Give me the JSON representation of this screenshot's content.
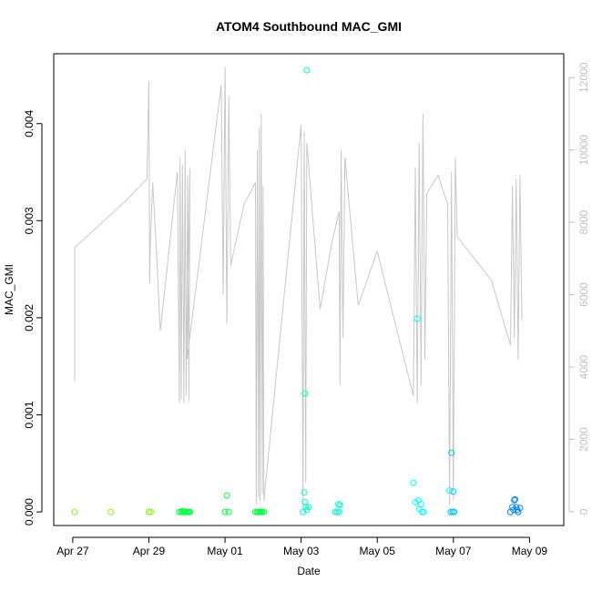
{
  "chart_data": {
    "type": "scatter",
    "title": "ATOM4 Southbound MAC_GMI",
    "xlabel": "Date",
    "ylabel": "MAC_GMI",
    "x_ticks": [
      "Apr 27",
      "Apr 29",
      "May 01",
      "May 03",
      "May 05",
      "May 07",
      "May 09"
    ],
    "y_ticks": [
      "0.000",
      "0.001",
      "0.002",
      "0.003",
      "0.004"
    ],
    "y_right_ticks": [
      "0",
      "2000",
      "4000",
      "6000",
      "8000",
      "10000",
      "12000"
    ],
    "xlim_days": [
      -0.5,
      12.9
    ],
    "ylim": [
      -0.00014,
      0.00472
    ],
    "y_right_lim": [
      -380,
      12660
    ],
    "colors": {
      "line": "#c8c8c8",
      "axis": "#000000",
      "right_axis": "#c0c0c0",
      "points": [
        "#80ff00",
        "#00ff40",
        "#00ffc0",
        "#00ffff",
        "#00c0ff",
        "#0080ff"
      ]
    },
    "points": [
      [
        0.05,
        0.0,
        0
      ],
      [
        1.0,
        0.0,
        0
      ],
      [
        2.0,
        0.0,
        0
      ],
      [
        2.05,
        0.0,
        0
      ],
      [
        2.8,
        0.0,
        1
      ],
      [
        2.85,
        0.0,
        1
      ],
      [
        2.88,
        1e-05,
        1
      ],
      [
        2.92,
        0.0,
        1
      ],
      [
        2.95,
        0.0,
        1
      ],
      [
        2.98,
        0.0,
        1
      ],
      [
        3.02,
        0.0,
        1
      ],
      [
        3.05,
        0.0,
        1
      ],
      [
        3.08,
        0.0,
        1
      ],
      [
        4.0,
        0.0,
        1
      ],
      [
        4.05,
        0.00017,
        1
      ],
      [
        4.1,
        0.0,
        1
      ],
      [
        4.8,
        0.0,
        1
      ],
      [
        4.85,
        0.0,
        1
      ],
      [
        4.88,
        0.0,
        1
      ],
      [
        4.92,
        0.0,
        1
      ],
      [
        4.95,
        0.0,
        1
      ],
      [
        4.98,
        0.0,
        1
      ],
      [
        5.02,
        0.0,
        1
      ],
      [
        6.05,
        0.0,
        2
      ],
      [
        6.1,
        0.0001,
        2
      ],
      [
        6.12,
        5e-05,
        2
      ],
      [
        6.15,
        2e-05,
        2
      ],
      [
        6.08,
        0.0002,
        2
      ],
      [
        6.1,
        0.00122,
        2
      ],
      [
        6.15,
        0.00455,
        2
      ],
      [
        6.2,
        5e-05,
        2
      ],
      [
        6.9,
        0.0,
        2
      ],
      [
        6.95,
        0.0,
        2
      ],
      [
        6.98,
        8e-05,
        2
      ],
      [
        7.0,
        0.0,
        2
      ],
      [
        7.02,
        7e-05,
        2
      ],
      [
        8.95,
        0.0003,
        3
      ],
      [
        9.0,
        0.0001,
        3
      ],
      [
        9.05,
        0.00199,
        3
      ],
      [
        9.08,
        0.00012,
        3
      ],
      [
        9.1,
        3e-05,
        3
      ],
      [
        9.15,
        8e-05,
        3
      ],
      [
        9.18,
        0.0,
        3
      ],
      [
        9.22,
        0.0,
        3
      ],
      [
        9.9,
        0.00022,
        3
      ],
      [
        9.95,
        0.00061,
        4
      ],
      [
        10.0,
        0.00021,
        4
      ],
      [
        9.93,
        0.0,
        4
      ],
      [
        9.98,
        0.0,
        4
      ],
      [
        10.02,
        0.0,
        4
      ],
      [
        11.5,
        0.0,
        5
      ],
      [
        11.55,
        5e-05,
        5
      ],
      [
        11.6,
        0.00012,
        5
      ],
      [
        11.62,
        0.00013,
        5
      ],
      [
        11.65,
        5e-05,
        5
      ],
      [
        11.68,
        2e-05,
        5
      ],
      [
        11.7,
        0.0,
        5
      ],
      [
        11.75,
        4e-05,
        5
      ],
      [
        11.58,
        2e-05,
        5
      ]
    ],
    "line_series": [
      [
        0.05,
        3600
      ],
      [
        0.05,
        7300
      ],
      [
        1.4,
        8600
      ],
      [
        1.95,
        9200
      ],
      [
        2.0,
        11900
      ],
      [
        2.02,
        6300
      ],
      [
        2.04,
        7500
      ],
      [
        2.1,
        9100
      ],
      [
        2.2,
        7200
      ],
      [
        2.3,
        5000
      ],
      [
        2.75,
        9400
      ],
      [
        2.8,
        3000
      ],
      [
        2.82,
        9800
      ],
      [
        2.85,
        3100
      ],
      [
        2.88,
        9600
      ],
      [
        2.92,
        3000
      ],
      [
        2.95,
        10000
      ],
      [
        2.98,
        3200
      ],
      [
        3.02,
        9300
      ],
      [
        3.05,
        3050
      ],
      [
        3.08,
        9500
      ],
      [
        3.0,
        4200
      ],
      [
        3.9,
        11800
      ],
      [
        3.95,
        6000
      ],
      [
        4.0,
        12300
      ],
      [
        4.05,
        5200
      ],
      [
        4.1,
        11500
      ],
      [
        4.15,
        6800
      ],
      [
        4.5,
        8500
      ],
      [
        4.8,
        9100
      ],
      [
        4.82,
        200
      ],
      [
        4.85,
        10000
      ],
      [
        4.88,
        400
      ],
      [
        4.9,
        10600
      ],
      [
        4.92,
        300
      ],
      [
        4.95,
        11000
      ],
      [
        4.98,
        500
      ],
      [
        5.0,
        9000
      ],
      [
        5.02,
        300
      ],
      [
        6.0,
        10700
      ],
      [
        6.05,
        200
      ],
      [
        6.08,
        10500
      ],
      [
        6.12,
        800
      ],
      [
        6.15,
        10200
      ],
      [
        6.5,
        5600
      ],
      [
        6.8,
        7400
      ],
      [
        7.0,
        8300
      ],
      [
        7.02,
        3500
      ],
      [
        7.05,
        10000
      ],
      [
        7.1,
        4800
      ],
      [
        7.15,
        9800
      ],
      [
        7.5,
        5700
      ],
      [
        8.0,
        7200
      ],
      [
        8.95,
        3200
      ],
      [
        9.0,
        9500
      ],
      [
        9.05,
        3000
      ],
      [
        9.1,
        10200
      ],
      [
        9.15,
        3500
      ],
      [
        9.2,
        11000
      ],
      [
        9.25,
        4200
      ],
      [
        9.3,
        8800
      ],
      [
        9.6,
        9300
      ],
      [
        9.85,
        8500
      ],
      [
        9.9,
        200
      ],
      [
        9.95,
        9400
      ],
      [
        10.0,
        300
      ],
      [
        10.05,
        9800
      ],
      [
        10.1,
        7600
      ],
      [
        11.0,
        6400
      ],
      [
        11.5,
        4600
      ],
      [
        11.55,
        9000
      ],
      [
        11.6,
        4800
      ],
      [
        11.65,
        9200
      ],
      [
        11.7,
        4200
      ],
      [
        11.75,
        9300
      ],
      [
        11.8,
        5300
      ]
    ]
  }
}
